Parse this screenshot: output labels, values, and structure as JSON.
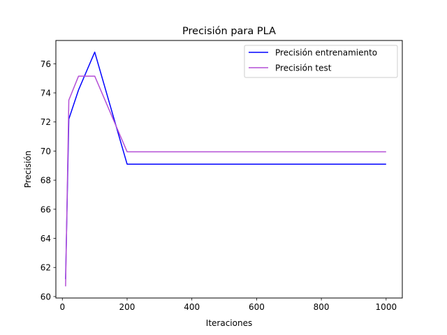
{
  "chart_data": {
    "type": "line",
    "title": "Precisión para PLA",
    "xlabel": "Iteraciones",
    "ylabel": "Precisión",
    "xlim": [
      -20,
      1050
    ],
    "ylim": [
      59.9,
      77.6
    ],
    "xticks": [
      0,
      200,
      400,
      600,
      800,
      1000
    ],
    "yticks": [
      60,
      62,
      64,
      66,
      68,
      70,
      72,
      74,
      76
    ],
    "grid": false,
    "legend_position": "top-right",
    "series": [
      {
        "name": "Precisión entrenamiento",
        "color": "#0000ff",
        "x": [
          10,
          20,
          50,
          100,
          200,
          1000
        ],
        "y": [
          61.2,
          72.2,
          74.2,
          76.8,
          69.1,
          69.1
        ]
      },
      {
        "name": "Precisión test",
        "color": "#b44fd6",
        "x": [
          10,
          20,
          50,
          100,
          200,
          1000
        ],
        "y": [
          60.7,
          73.5,
          75.15,
          75.15,
          69.95,
          69.95
        ]
      }
    ]
  }
}
